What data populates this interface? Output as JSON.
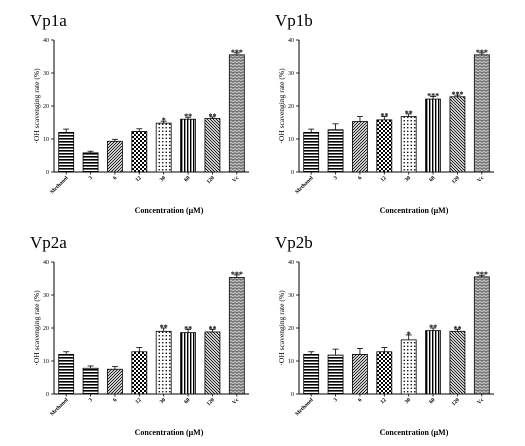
{
  "figure": {
    "colors": {
      "ink": "#000000",
      "background": "#ffffff"
    }
  },
  "chart_data": [
    {
      "type": "bar",
      "title": "Vp1a",
      "xlabel": "Concentration (μM)",
      "ylabel": "·OH scavenging rate (%)",
      "ylim": [
        0,
        40
      ],
      "yticks": [
        0,
        10,
        20,
        30,
        40
      ],
      "categories": [
        "Methanol",
        "3",
        "6",
        "12",
        "30",
        "60",
        "120",
        "Vc"
      ],
      "values": [
        12,
        5.8,
        9.3,
        12.3,
        14.8,
        16.0,
        16.2,
        35.5
      ],
      "errors": [
        1.0,
        0.5,
        0.6,
        0.8,
        0.6,
        0.6,
        0.5,
        0.6
      ],
      "significance": [
        "",
        "",
        "",
        "",
        "*",
        "**",
        "**",
        "***"
      ],
      "patterns": [
        "hstripe",
        "hstripe",
        "diag",
        "checker",
        "dots",
        "vstripe",
        "diag-back",
        "brick"
      ],
      "grid": false,
      "legend": "none"
    },
    {
      "type": "bar",
      "title": "Vp1b",
      "xlabel": "Concentration (μM)",
      "ylabel": "·OH scavenging rate (%)",
      "ylim": [
        0,
        40
      ],
      "yticks": [
        0,
        10,
        20,
        30,
        40
      ],
      "categories": [
        "Methanol",
        "3",
        "6",
        "12",
        "30",
        "60",
        "120",
        "Vc"
      ],
      "values": [
        12,
        12.8,
        15.3,
        15.8,
        16.8,
        22.1,
        22.8,
        35.5
      ],
      "errors": [
        1.0,
        1.8,
        1.5,
        1.0,
        0.8,
        0.8,
        0.5,
        0.6
      ],
      "significance": [
        "",
        "",
        "",
        "**",
        "**",
        "***",
        "***",
        "***"
      ],
      "patterns": [
        "hstripe",
        "hstripe",
        "diag",
        "checker",
        "dots",
        "vstripe",
        "diag-back",
        "brick"
      ],
      "grid": false,
      "legend": "none"
    },
    {
      "type": "bar",
      "title": "Vp2a",
      "xlabel": "Concentration (μM)",
      "ylabel": "·OH scavenging rate (%)",
      "ylim": [
        0,
        40
      ],
      "yticks": [
        0,
        10,
        20,
        30,
        40
      ],
      "categories": [
        "Methanol",
        "3",
        "6",
        "12",
        "30",
        "60",
        "120",
        "Vc"
      ],
      "values": [
        12,
        7.8,
        7.5,
        12.8,
        19.0,
        18.6,
        18.8,
        35.3
      ],
      "errors": [
        0.8,
        0.7,
        0.8,
        1.3,
        1.0,
        1.0,
        0.8,
        0.8
      ],
      "significance": [
        "",
        "",
        "",
        "",
        "**",
        "**",
        "**",
        "***"
      ],
      "patterns": [
        "hstripe",
        "hstripe",
        "diag",
        "checker",
        "dots",
        "vstripe",
        "diag-back",
        "brick"
      ],
      "grid": false,
      "legend": "none"
    },
    {
      "type": "bar",
      "title": "Vp2b",
      "xlabel": "Concentration (μM)",
      "ylabel": "·OH scavenging rate (%)",
      "ylim": [
        0,
        40
      ],
      "yticks": [
        0,
        10,
        20,
        30,
        40
      ],
      "categories": [
        "Methanol",
        "3",
        "6",
        "12",
        "30",
        "60",
        "120",
        "Vc"
      ],
      "values": [
        12,
        11.8,
        12.0,
        12.8,
        16.4,
        19.2,
        19.0,
        35.5
      ],
      "errors": [
        0.8,
        1.8,
        1.8,
        1.3,
        1.5,
        0.8,
        0.6,
        0.5
      ],
      "significance": [
        "",
        "",
        "",
        "",
        "*",
        "**",
        "**",
        "***"
      ],
      "patterns": [
        "hstripe",
        "hstripe",
        "diag",
        "checker",
        "dots",
        "vstripe",
        "diag-back",
        "brick"
      ],
      "grid": false,
      "legend": "none"
    }
  ]
}
